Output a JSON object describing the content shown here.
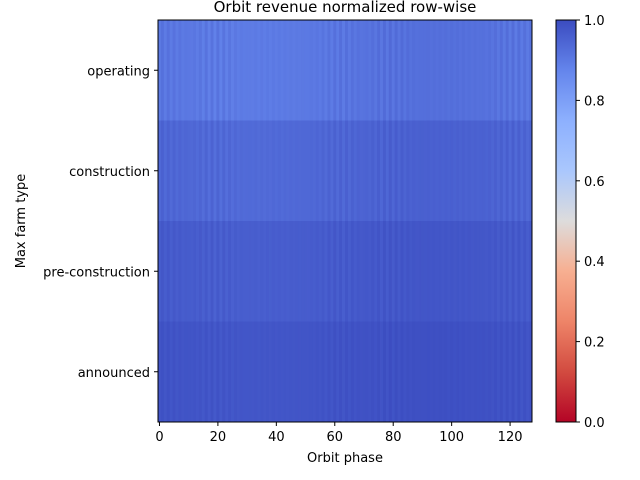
{
  "chart_data": {
    "type": "heatmap",
    "title": "Orbit revenue normalized row-wise",
    "xlabel": "Orbit phase",
    "ylabel": "Max farm type",
    "rows": [
      "operating",
      "construction",
      "pre-construction",
      "announced"
    ],
    "x_range": [
      0,
      128
    ],
    "xticks": [
      0,
      20,
      40,
      60,
      80,
      100,
      120
    ],
    "colormap": "coolwarm",
    "vmin": 0.0,
    "vmax": 1.0,
    "colorbar_ticks": [
      0.0,
      0.2,
      0.4,
      0.6,
      0.8,
      1.0
    ],
    "colorbar_tick_labels": [
      "0.0",
      "0.2",
      "0.4",
      "0.6",
      "0.8",
      "1.0"
    ],
    "row_value_ranges": {
      "operating": [
        0.88,
        0.94
      ],
      "construction": [
        0.92,
        0.97
      ],
      "pre-construction": [
        0.95,
        0.99
      ],
      "announced": [
        0.97,
        1.0
      ]
    }
  }
}
